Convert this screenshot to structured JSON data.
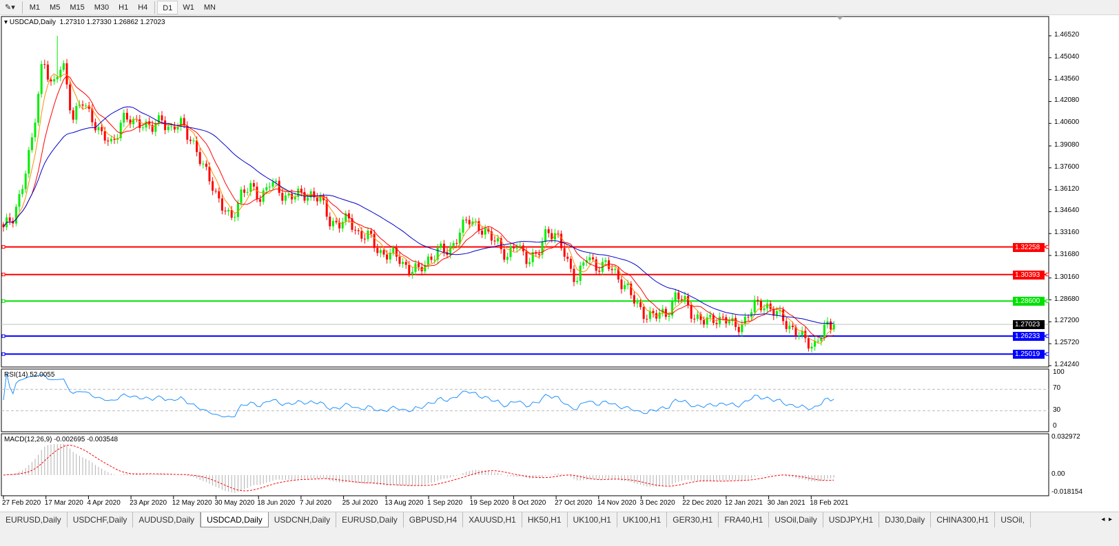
{
  "toolbar": {
    "timeframes": [
      "M1",
      "M5",
      "M15",
      "M30",
      "H1",
      "H4",
      "D1",
      "W1",
      "MN"
    ],
    "active": "D1"
  },
  "chart_info": {
    "symbol": "USDCAD,Daily",
    "ohlc": "1.27310 1.27330 1.26862 1.27023"
  },
  "chart_data": {
    "type": "candlestick",
    "symbol": "USDCAD",
    "timeframe": "Daily",
    "ylim": [
      1.2424,
      1.4652
    ],
    "y_ticks": [
      "1.46520",
      "1.45040",
      "1.43560",
      "1.42080",
      "1.40600",
      "1.39080",
      "1.37600",
      "1.36120",
      "1.34640",
      "1.33160",
      "1.31680",
      "1.30160",
      "1.28680",
      "1.27200",
      "1.25720",
      "1.24240"
    ],
    "x_ticks": [
      "27 Feb 2020",
      "17 Mar 2020",
      "4 Apr 2020",
      "23 Apr 2020",
      "12 May 2020",
      "30 May 2020",
      "18 Jun 2020",
      "7 Jul 2020",
      "25 Jul 2020",
      "13 Aug 2020",
      "1 Sep 2020",
      "19 Sep 2020",
      "8 Oct 2020",
      "27 Oct 2020",
      "14 Nov 2020",
      "3 Dec 2020",
      "22 Dec 2020",
      "12 Jan 2021",
      "30 Jan 2021",
      "18 Feb 2021"
    ],
    "close": [
      1.3359,
      1.3405,
      1.3684,
      1.3964,
      1.4522,
      1.4289,
      1.4475,
      1.4103,
      1.4196,
      1.4103,
      1.3964,
      1.3917,
      1.4103,
      1.4057,
      1.408,
      1.401,
      1.4103,
      1.401,
      1.4057,
      1.3964,
      1.3777,
      1.3684,
      1.3498,
      1.3405,
      1.3591,
      1.3615,
      1.3568,
      1.3661,
      1.3591,
      1.3568,
      1.3568,
      1.3591,
      1.3545,
      1.3405,
      1.3382,
      1.3405,
      1.3312,
      1.3289,
      1.3196,
      1.3173,
      1.315,
      1.308,
      1.3057,
      1.315,
      1.3196,
      1.3196,
      1.3312,
      1.3405,
      1.3382,
      1.3289,
      1.3266,
      1.315,
      1.3243,
      1.315,
      1.315,
      1.3359,
      1.3289,
      1.3126,
      1.301,
      1.315,
      1.3103,
      1.3103,
      1.3033,
      1.2964,
      1.2824,
      1.2777,
      1.2754,
      1.2777,
      1.2894,
      1.2847,
      1.2754,
      1.2708,
      1.2754,
      1.2731,
      1.2684,
      1.2731,
      1.2824,
      1.2847,
      1.2777,
      1.2731,
      1.2661,
      1.2591,
      1.2568,
      1.2661,
      1.27023
    ],
    "high": 1.4652,
    "last_price": "1.27023",
    "levels": [
      {
        "value": "1.32258",
        "color": "#ff0000"
      },
      {
        "value": "1.30393",
        "color": "#ff0000"
      },
      {
        "value": "1.28600",
        "color": "#00e000"
      },
      {
        "value": "1.26233",
        "color": "#0000ff"
      },
      {
        "value": "1.25019",
        "color": "#0000ff"
      }
    ],
    "colors": {
      "bull": "#00ee00",
      "bear": "#ff0000",
      "ma_fast": "#ff8c00",
      "ma_mid": "#ff0000",
      "ma_slow": "#0000cc",
      "rsi": "#1e90ff",
      "macd_hist": "#b0b0b0",
      "macd_signal": "#ff0000"
    }
  },
  "rsi": {
    "label": "RSI(14) 52.0055",
    "ticks": [
      "100",
      "70",
      "30",
      "0"
    ]
  },
  "macd": {
    "label": "MACD(12,26,9) -0.002695 -0.003548",
    "ticks": [
      "0.032972",
      "0.00",
      "-0.018154"
    ]
  },
  "tabs": [
    "EURUSD,Daily",
    "USDCHF,Daily",
    "AUDUSD,Daily",
    "USDCAD,Daily",
    "USDCNH,Daily",
    "EURUSD,Daily",
    "GBPUSD,H4",
    "XAUUSD,H1",
    "HK50,H1",
    "UK100,H1",
    "UK100,H1",
    "GER30,H1",
    "FRA40,H1",
    "USOil,Daily",
    "USDJPY,H1",
    "DJ30,Daily",
    "CHINA300,H1",
    "USOil,"
  ],
  "active_tab": "USDCAD,Daily"
}
